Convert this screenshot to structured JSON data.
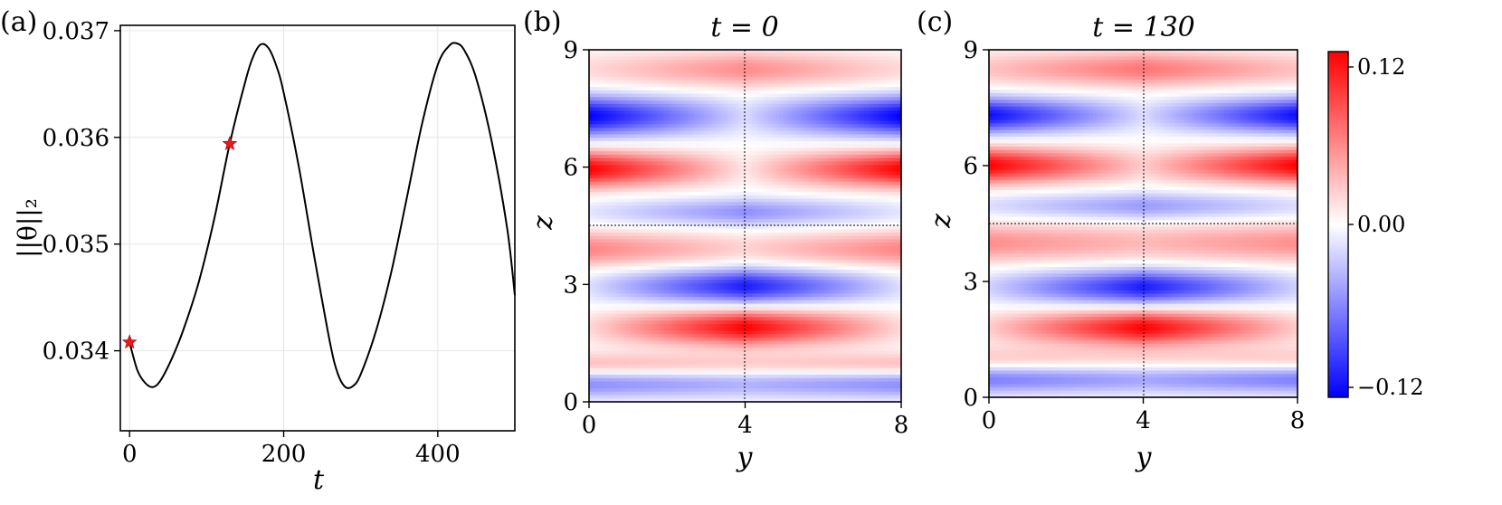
{
  "figure": {
    "panel_labels": [
      "(a)",
      "(b)",
      "(c)"
    ]
  },
  "colors": {
    "positive": "#ff0000",
    "zero": "#ffffff",
    "negative": "#0000ff",
    "line": "#000000",
    "marker": "#e41a1c",
    "grid": "#e6e6e6"
  },
  "chart_data": [
    {
      "panel": "(a)",
      "type": "line",
      "title": "",
      "xlabel": "t",
      "ylabel": "||θ||₂",
      "xlim": [
        -12,
        500
      ],
      "ylim": [
        0.03325,
        0.03705
      ],
      "xticks": [
        0,
        200,
        400
      ],
      "xtick_labels": [
        "0",
        "200",
        "400"
      ],
      "yticks": [
        0.034,
        0.035,
        0.036,
        0.037
      ],
      "ytick_labels": [
        "0.034",
        "0.035",
        "0.036",
        "0.037"
      ],
      "grid": true,
      "series": [
        {
          "x": [
            0,
            10,
            20,
            30,
            40,
            55,
            70,
            90,
            110,
            130,
            150,
            160,
            170,
            180,
            190,
            200,
            220,
            240,
            260,
            270,
            280,
            290,
            300,
            320,
            340,
            360,
            380,
            400,
            415,
            425,
            435,
            450,
            470,
            490,
            500
          ],
          "y": [
            0.03408,
            0.03382,
            0.0337,
            0.03366,
            0.03372,
            0.03393,
            0.0342,
            0.03465,
            0.03524,
            0.03594,
            0.03652,
            0.03675,
            0.03687,
            0.03684,
            0.03668,
            0.03642,
            0.03571,
            0.03487,
            0.03408,
            0.03379,
            0.03366,
            0.03367,
            0.03378,
            0.03419,
            0.03475,
            0.03544,
            0.03614,
            0.03668,
            0.03686,
            0.03688,
            0.03681,
            0.03655,
            0.03596,
            0.03515,
            0.03452
          ]
        }
      ],
      "markers": [
        {
          "x": 0,
          "y": 0.03408
        },
        {
          "x": 130,
          "y": 0.03594
        }
      ]
    },
    {
      "panel": "(b)",
      "type": "heatmap",
      "title": "t = 0",
      "xlabel": "y",
      "ylabel": "z",
      "xlim": [
        0,
        8
      ],
      "ylim": [
        0,
        9
      ],
      "xticks": [
        "0",
        "4",
        "8"
      ],
      "yticks": [
        "0",
        "3",
        "6",
        "9"
      ],
      "vertical_line_x": 4,
      "horizontal_line_z": 4.5,
      "bands": [
        {
          "z": 0.45,
          "amp": -0.45,
          "wz": 0.35,
          "inner": 0.7,
          "outer": 1.0,
          "wy": 1.3
        },
        {
          "z": 0.95,
          "amp": 0.35,
          "wz": 0.3,
          "inner": 0.6,
          "outer": 0.8,
          "wy": 1.3
        },
        {
          "z": 1.9,
          "amp": 1.0,
          "wz": 0.45,
          "inner": 1.0,
          "outer": 0.15,
          "wy": 1.4
        },
        {
          "z": 2.95,
          "amp": -0.9,
          "wz": 0.45,
          "inner": 1.0,
          "outer": 0.15,
          "wy": 1.4
        },
        {
          "z": 3.9,
          "amp": 0.6,
          "wz": 0.45,
          "inner": 0.3,
          "outer": 0.8,
          "wy": 1.1
        },
        {
          "z": 4.85,
          "amp": -0.55,
          "wz": 0.35,
          "inner": 0.8,
          "outer": 0.2,
          "wy": 1.1
        },
        {
          "z": 5.95,
          "amp": 1.0,
          "wz": 0.45,
          "inner": 0.1,
          "outer": 1.0,
          "wy": 1.0
        },
        {
          "z": 7.3,
          "amp": -1.0,
          "wz": 0.5,
          "inner": 0.15,
          "outer": 1.0,
          "wy": 1.0
        },
        {
          "z": 8.5,
          "amp": 0.5,
          "wz": 0.45,
          "inner": 0.9,
          "outer": 0.3,
          "wy": 1.2
        }
      ]
    },
    {
      "panel": "(c)",
      "type": "heatmap",
      "title": "t = 130",
      "xlabel": "y",
      "ylabel": "z",
      "xlim": [
        0,
        8
      ],
      "ylim": [
        0,
        9
      ],
      "xticks": [
        "0",
        "4",
        "8"
      ],
      "yticks": [
        "0",
        "3",
        "6",
        "9"
      ],
      "vertical_line_x": 4,
      "horizontal_line_z": 4.5,
      "bands": [
        {
          "z": 0.45,
          "amp": -0.5,
          "wz": 0.35,
          "inner": 0.7,
          "outer": 1.0,
          "wy": 1.3
        },
        {
          "z": 1.0,
          "amp": 0.3,
          "wz": 0.3,
          "inner": 0.5,
          "outer": 0.7,
          "wy": 1.3
        },
        {
          "z": 1.8,
          "amp": 1.0,
          "wz": 0.45,
          "inner": 1.0,
          "outer": 0.2,
          "wy": 1.5
        },
        {
          "z": 2.85,
          "amp": -0.9,
          "wz": 0.45,
          "inner": 1.0,
          "outer": 0.2,
          "wy": 1.5
        },
        {
          "z": 4.0,
          "amp": 0.55,
          "wz": 0.5,
          "inner": 0.5,
          "outer": 0.8,
          "wy": 1.2
        },
        {
          "z": 4.95,
          "amp": -0.5,
          "wz": 0.35,
          "inner": 0.8,
          "outer": 0.3,
          "wy": 1.2
        },
        {
          "z": 6.0,
          "amp": 1.0,
          "wz": 0.45,
          "inner": 0.2,
          "outer": 1.0,
          "wy": 1.0
        },
        {
          "z": 7.3,
          "amp": -0.95,
          "wz": 0.45,
          "inner": 0.15,
          "outer": 1.0,
          "wy": 1.0
        },
        {
          "z": 8.5,
          "amp": 0.6,
          "wz": 0.45,
          "inner": 0.9,
          "outer": 0.4,
          "wy": 1.2
        }
      ]
    },
    {
      "panel": "colorbar",
      "type": "heatmap",
      "vmin": -0.12,
      "vmax": 0.12,
      "ticks": [
        "0.12",
        "0.00",
        "−0.12"
      ]
    }
  ]
}
